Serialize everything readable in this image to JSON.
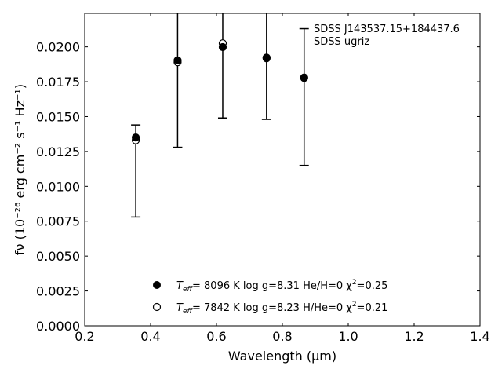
{
  "chart_data": {
    "type": "scatter",
    "xlabel": "Wavelength (μm)",
    "ylabel": "fν (10⁻²⁶ erg cm⁻² s⁻¹ Hz⁻¹)",
    "xlim": [
      0.2,
      1.4
    ],
    "ylim": [
      0.0,
      0.0224
    ],
    "grid": false,
    "legend_position": "lower-center",
    "x_ticks": [
      "0.2",
      "0.4",
      "0.6",
      "0.8",
      "1.0",
      "1.2",
      "1.4"
    ],
    "y_ticks": [
      "0.0000",
      "0.0025",
      "0.0050",
      "0.0075",
      "0.0100",
      "0.0125",
      "0.0150",
      "0.0175",
      "0.0200"
    ],
    "annotation": [
      "SDSS J143537.15+184437.6",
      "SDSS ugriz"
    ],
    "observed_errors": [
      {
        "x": 0.355,
        "low": 0.0078,
        "high": 0.0144
      },
      {
        "x": 0.482,
        "low": 0.0128,
        "high": 0.0252
      },
      {
        "x": 0.619,
        "low": 0.0149,
        "high": 0.0251
      },
      {
        "x": 0.752,
        "low": 0.0148,
        "high": 0.0236
      },
      {
        "x": 0.866,
        "low": 0.0115,
        "high": 0.0213
      }
    ],
    "series": [
      {
        "marker": "filled-circle",
        "label_parts": [
          "T",
          "eff",
          "=  8096 K  log g=8.31  He/H=0  χ",
          "2",
          "=0.25"
        ],
        "x": [
          0.355,
          0.482,
          0.619,
          0.752,
          0.866
        ],
        "y": [
          0.0135,
          0.01903,
          0.01998,
          0.01923,
          0.01777
        ]
      },
      {
        "marker": "open-circle",
        "label_parts": [
          "T",
          "eff",
          "=  7842 K  log g=8.23  H/He=0  χ",
          "2",
          "=0.21"
        ],
        "x": [
          0.355,
          0.482,
          0.619,
          0.752,
          0.866
        ],
        "y": [
          0.0133,
          0.0189,
          0.02025,
          0.01918,
          0.0178
        ]
      }
    ]
  }
}
